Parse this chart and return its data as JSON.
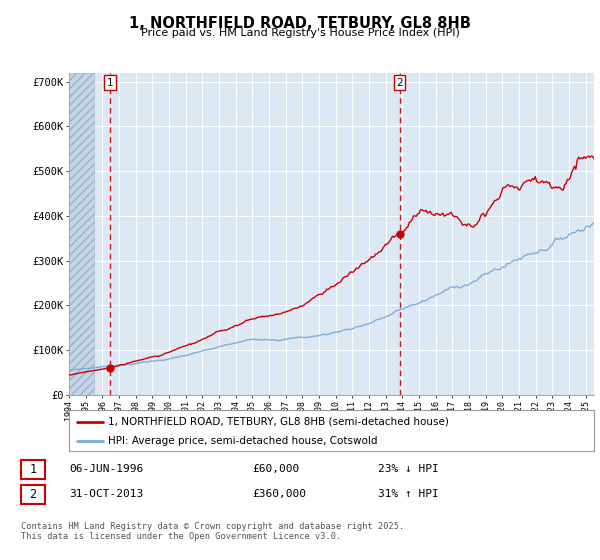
{
  "title": "1, NORTHFIELD ROAD, TETBURY, GL8 8HB",
  "subtitle": "Price paid vs. HM Land Registry's House Price Index (HPI)",
  "plot_bg_color": "#dde8f5",
  "hatch_bg_color": "#c5d5e8",
  "red_line_color": "#cc0000",
  "blue_line_color": "#7aabdc",
  "dashed_line_color": "#cc0000",
  "marker_color": "#cc0000",
  "sale1_year": 1996.44,
  "sale1_price": 60000,
  "sale1_date": "06-JUN-1996",
  "sale1_hpi_pct": "23% ↓ HPI",
  "sale2_year": 2013.83,
  "sale2_price": 360000,
  "sale2_date": "31-OCT-2013",
  "sale2_hpi_pct": "31% ↑ HPI",
  "xmin": 1994,
  "xmax": 2025.5,
  "ymin": 0,
  "ymax": 720000,
  "yticks": [
    0,
    100000,
    200000,
    300000,
    400000,
    500000,
    600000,
    700000
  ],
  "ytick_labels": [
    "£0",
    "£100K",
    "£200K",
    "£300K",
    "£400K",
    "£500K",
    "£600K",
    "£700K"
  ],
  "legend_label1": "1, NORTHFIELD ROAD, TETBURY, GL8 8HB (semi-detached house)",
  "legend_label2": "HPI: Average price, semi-detached house, Cotswold",
  "footer": "Contains HM Land Registry data © Crown copyright and database right 2025.\nThis data is licensed under the Open Government Licence v3.0.",
  "hatch_end_year": 1995.5
}
